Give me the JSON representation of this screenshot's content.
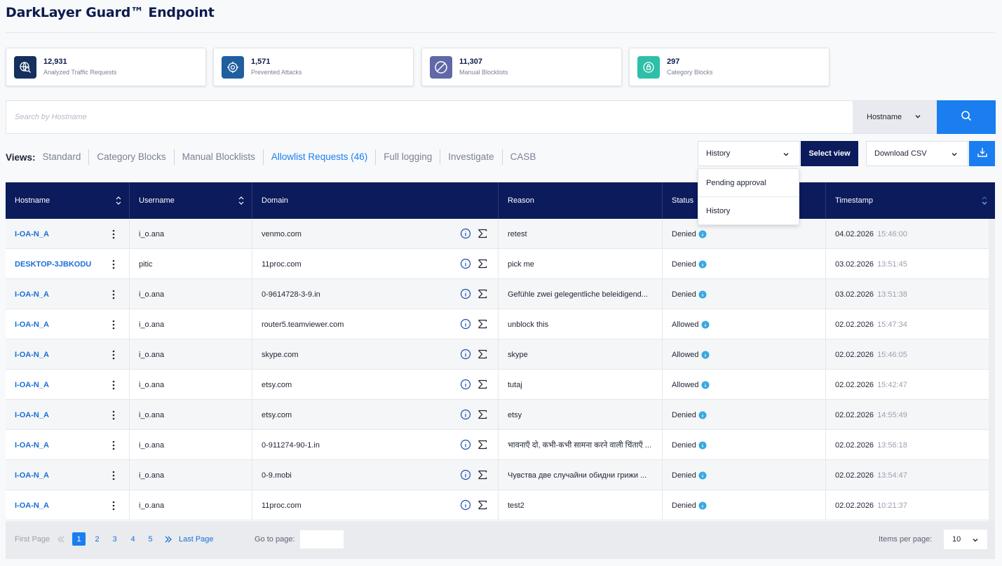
{
  "app": {
    "title": "DarkLayer Guard™ Endpoint"
  },
  "stats": [
    {
      "value": "12,931",
      "label": "Analyzed Traffic Requests",
      "color": "#13305e",
      "icon": "globe-search-icon"
    },
    {
      "value": "1,571",
      "label": "Prevented Attacks",
      "color": "#1f5f9f",
      "icon": "target-shield-icon"
    },
    {
      "value": "11,307",
      "label": "Manual Blocklists",
      "color": "#6068a8",
      "icon": "block-icon"
    },
    {
      "value": "297",
      "label": "Category Blocks",
      "color": "#2ebfa8",
      "icon": "lock-icon"
    }
  ],
  "search": {
    "placeholder": "Search by Hostname",
    "type": "Hostname"
  },
  "views": {
    "label": "Views:",
    "items": [
      "Standard",
      "Category Blocks",
      "Manual Blocklists",
      "Allowlist Requests (46)",
      "Full logging",
      "Investigate",
      "CASB"
    ],
    "active_index": 3
  },
  "controls": {
    "history_select": "History",
    "select_view_label": "Select view",
    "csv_select": "Download CSV"
  },
  "dropdown": {
    "items": [
      "Pending approval",
      "History"
    ]
  },
  "table": {
    "columns": [
      "Hostname",
      "Username",
      "Domain",
      "Reason",
      "Status",
      "Timestamp"
    ],
    "rows": [
      {
        "hostname": "I-OA-N_A",
        "username": "i_o.ana",
        "domain": "venmo.com",
        "reason": "retest",
        "status": "Denied",
        "date": "04.02.2026",
        "time": "15:46:00"
      },
      {
        "hostname": "DESKTOP-3JBKODU",
        "username": "pitic",
        "domain": "11proc.com",
        "reason": "pick me",
        "status": "Denied",
        "date": "03.02.2026",
        "time": "13:51:45"
      },
      {
        "hostname": "I-OA-N_A",
        "username": "i_o.ana",
        "domain": "0-9614728-3-9.in",
        "reason": "Gefühle zwei gelegentliche beleidigend...",
        "status": "Denied",
        "date": "03.02.2026",
        "time": "13:51:38"
      },
      {
        "hostname": "I-OA-N_A",
        "username": "i_o.ana",
        "domain": "router5.teamviewer.com",
        "reason": "unblock this",
        "status": "Allowed",
        "date": "02.02.2026",
        "time": "15:47:34"
      },
      {
        "hostname": "I-OA-N_A",
        "username": "i_o.ana",
        "domain": "skype.com",
        "reason": "skype",
        "status": "Allowed",
        "date": "02.02.2026",
        "time": "15:46:05"
      },
      {
        "hostname": "I-OA-N_A",
        "username": "i_o.ana",
        "domain": "etsy.com",
        "reason": "tutaj",
        "status": "Allowed",
        "date": "02.02.2026",
        "time": "15:42:47"
      },
      {
        "hostname": "I-OA-N_A",
        "username": "i_o.ana",
        "domain": "etsy.com",
        "reason": "etsy",
        "status": "Denied",
        "date": "02.02.2026",
        "time": "14:55:49"
      },
      {
        "hostname": "I-OA-N_A",
        "username": "i_o.ana",
        "domain": "0-911274-90-1.in",
        "reason": "भावनाएँ दो, कभी-कभी सामना करने वाली चिंताएँ ...",
        "status": "Denied",
        "date": "02.02.2026",
        "time": "13:56:18"
      },
      {
        "hostname": "I-OA-N_A",
        "username": "i_o.ana",
        "domain": "0-9.mobi",
        "reason": "Чувства две случайни обидни грижи ...",
        "status": "Denied",
        "date": "02.02.2026",
        "time": "13:54:47"
      },
      {
        "hostname": "I-OA-N_A",
        "username": "i_o.ana",
        "domain": "11proc.com",
        "reason": "test2",
        "status": "Denied",
        "date": "02.02.2026",
        "time": "10:21:37"
      }
    ]
  },
  "pagination": {
    "first": "First Page",
    "last": "Last Page",
    "pages": [
      "1",
      "2",
      "3",
      "4",
      "5"
    ],
    "current_page": "1",
    "goto_label": "Go to page:",
    "goto_value": "",
    "items_per_page_label": "Items per page:",
    "items_per_page": "10"
  },
  "colors": {
    "accent": "#1a7ef0",
    "navy": "#0c1b5c",
    "info": "#37a8e0"
  }
}
